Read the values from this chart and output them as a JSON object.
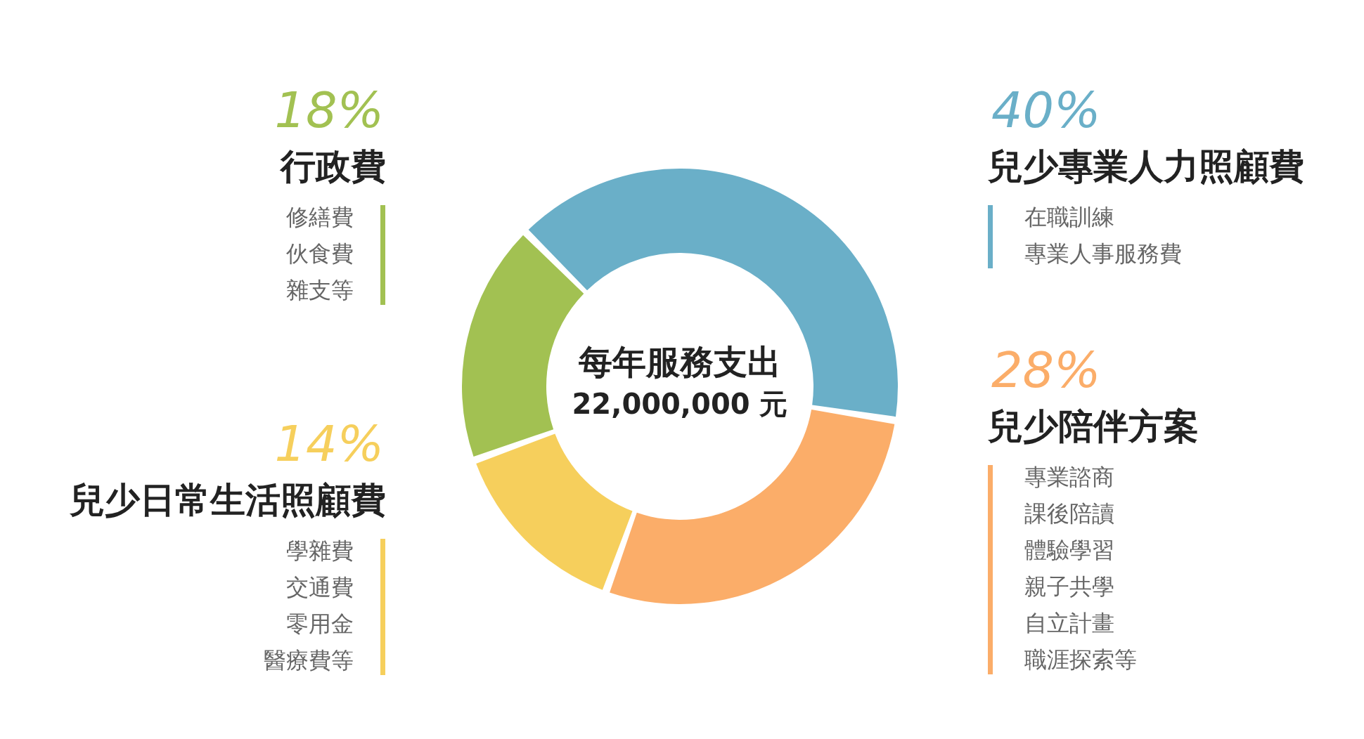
{
  "chart_data": {
    "type": "donut",
    "title": "每年服務支出",
    "subtitle": "22,000,000 元",
    "categories": [
      "兒少專業人力照顧費",
      "兒少陪伴方案",
      "兒少日常生活照顧費",
      "行政費"
    ],
    "values": [
      40,
      28,
      14,
      18
    ],
    "colors": [
      "#6aafc8",
      "#fbad69",
      "#f6cf5c",
      "#a2c152"
    ],
    "value_labels": [
      "40%",
      "28%",
      "14%",
      "18%"
    ],
    "annotations": [
      {
        "text": "在職訓練",
        "x": "兒少專業人力照顧費"
      },
      {
        "text": "專業人事服務費",
        "x": "兒少專業人力照顧費"
      },
      {
        "text": "專業諮商",
        "x": "兒少陪伴方案"
      },
      {
        "text": "課後陪讀",
        "x": "兒少陪伴方案"
      },
      {
        "text": "體驗學習",
        "x": "兒少陪伴方案"
      },
      {
        "text": "親子共學",
        "x": "兒少陪伴方案"
      },
      {
        "text": "自立計畫",
        "x": "兒少陪伴方案"
      },
      {
        "text": "職涯探索等",
        "x": "兒少陪伴方案"
      },
      {
        "text": "學雜費",
        "x": "兒少日常生活照顧費"
      },
      {
        "text": "交通費",
        "x": "兒少日常生活照顧費"
      },
      {
        "text": "零用金",
        "x": "兒少日常生活照顧費"
      },
      {
        "text": "醫療費等",
        "x": "兒少日常生活照顧費"
      },
      {
        "text": "修繕費",
        "x": "行政費"
      },
      {
        "text": "伙食費",
        "x": "行政費"
      },
      {
        "text": "雜支等",
        "x": "行政費"
      }
    ]
  }
}
